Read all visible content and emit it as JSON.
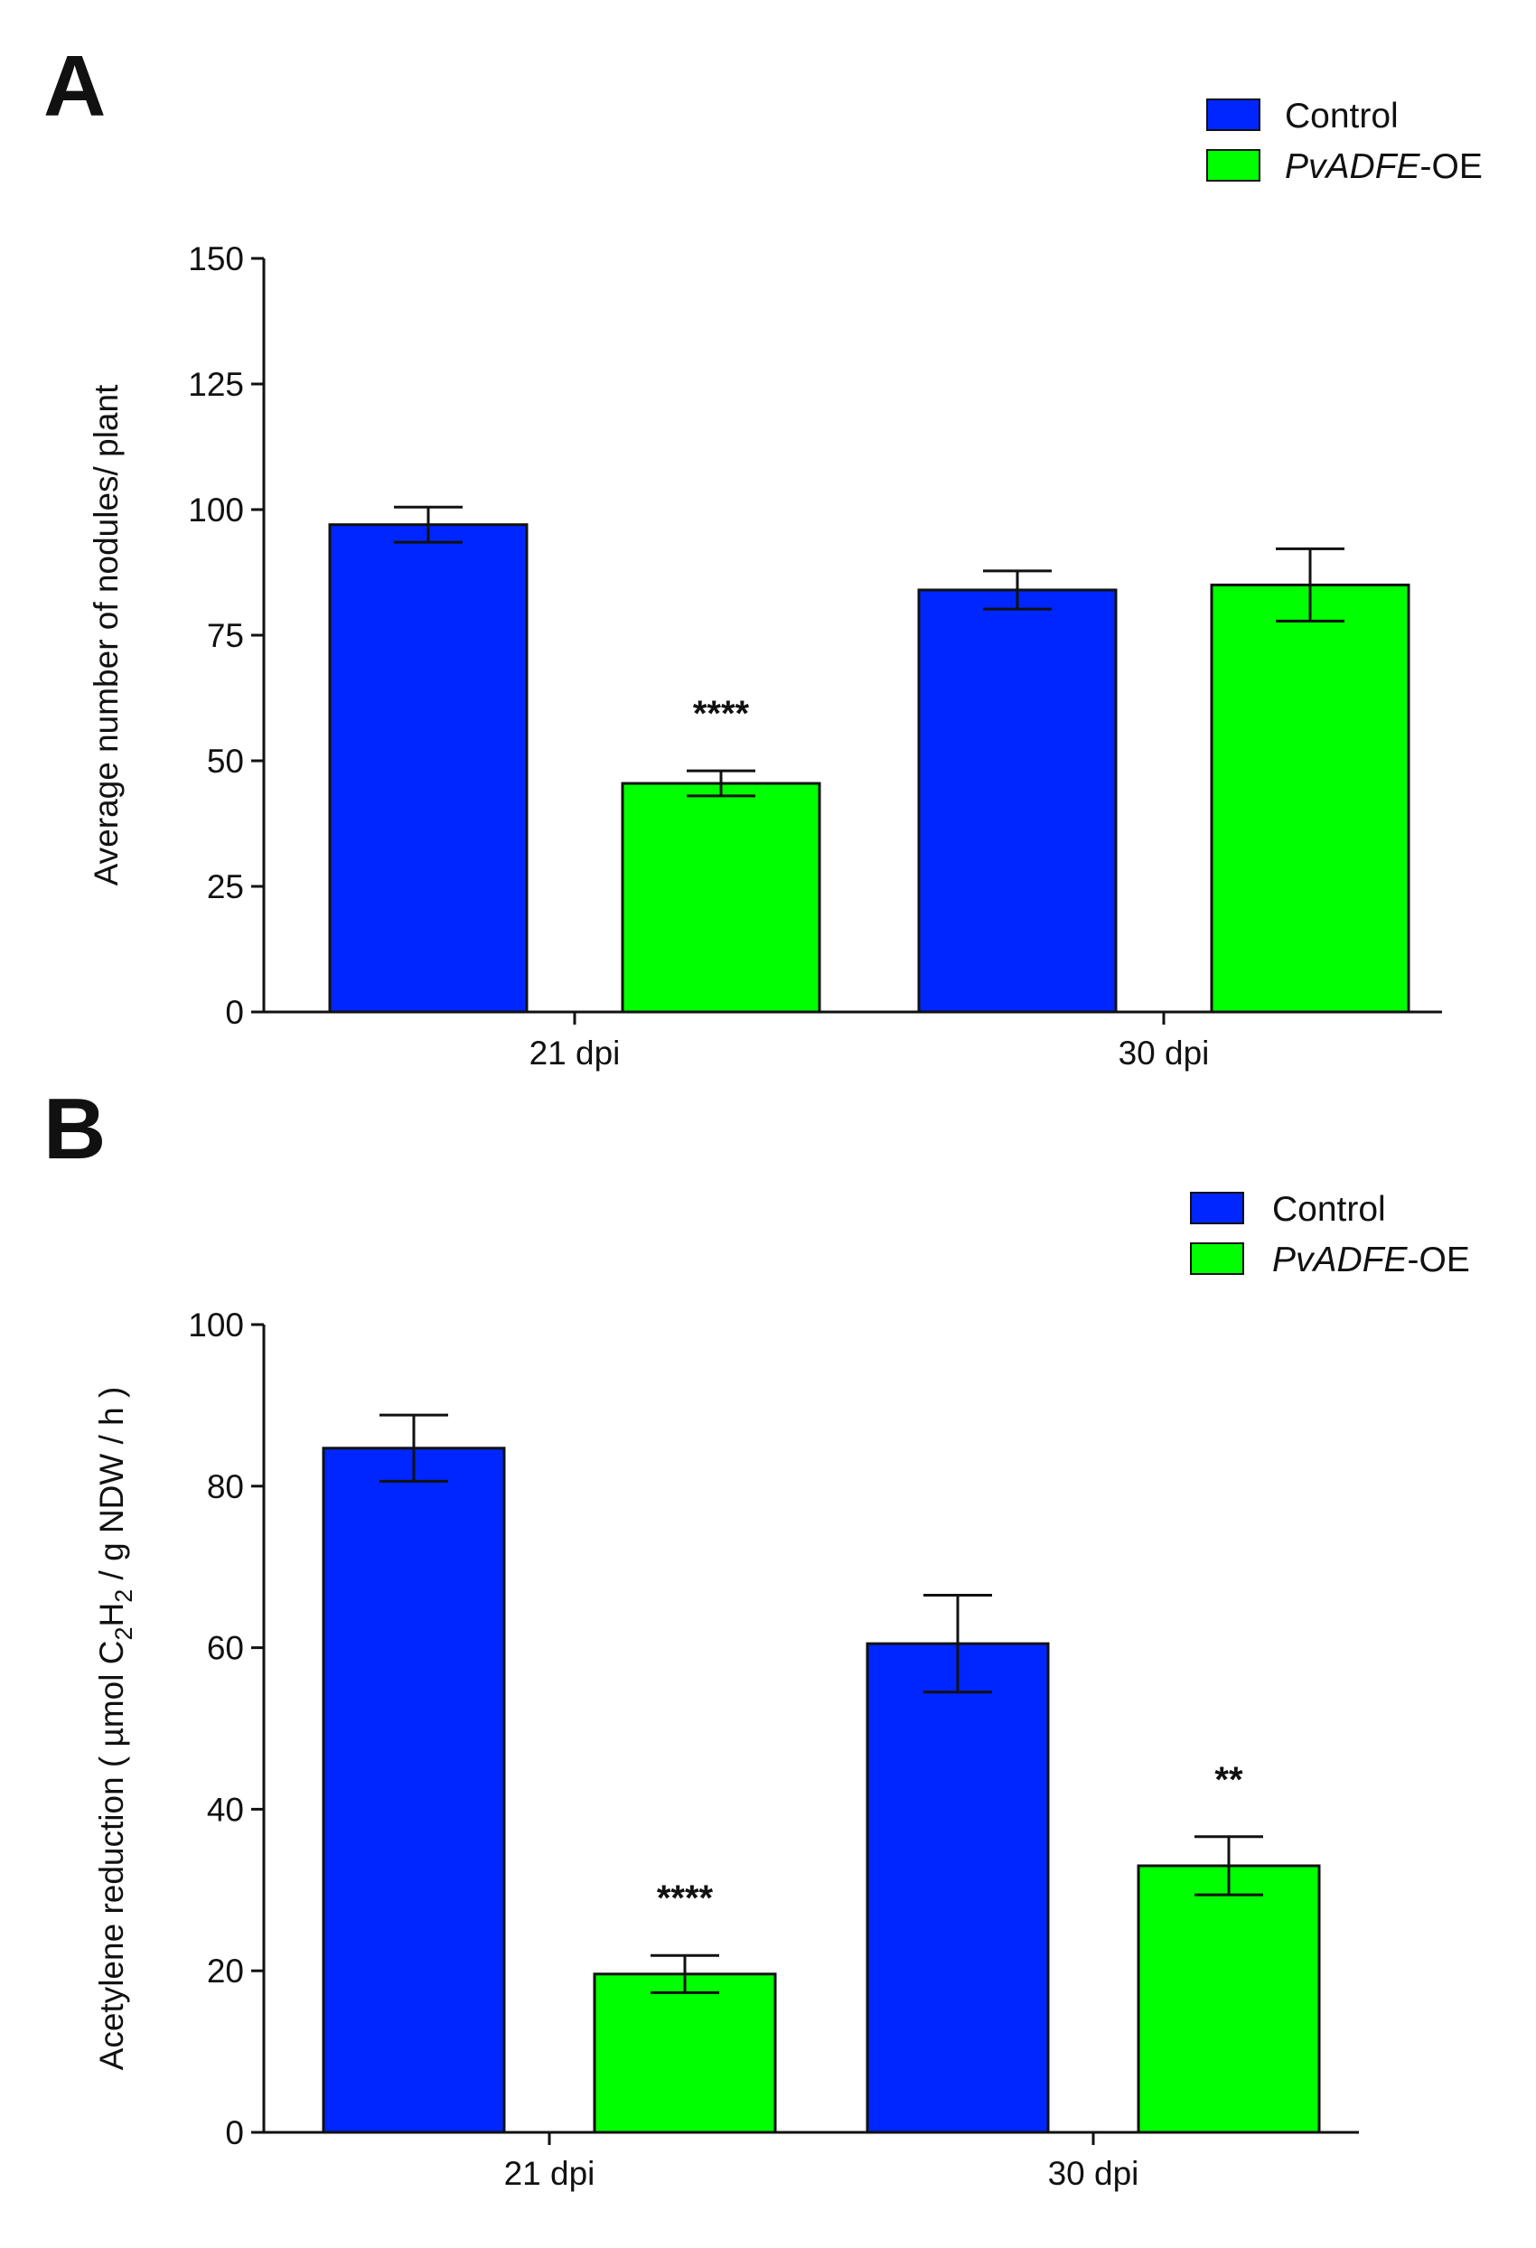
{
  "chart_data": [
    {
      "type": "bar",
      "panel": "A",
      "categories": [
        "21 dpi",
        "30 dpi"
      ],
      "series": [
        {
          "name": "Control",
          "color": "#0026ff",
          "values": [
            97,
            84
          ],
          "errors": [
            3.5,
            3.8
          ]
        },
        {
          "name": "PvADFE-OE",
          "color": "#00ff00",
          "values": [
            45.5,
            85
          ],
          "errors": [
            2.5,
            7.2
          ]
        }
      ],
      "legend": [
        {
          "italic": "",
          "text": "Control"
        },
        {
          "italic": "PvADFE",
          "text": "-OE"
        }
      ],
      "significance": [
        {
          "category": 0,
          "series": 1,
          "label": "****"
        }
      ],
      "ylabel": "Average number of nodules/ plant",
      "ylim": [
        0,
        150
      ],
      "yticks": [
        0,
        25,
        50,
        75,
        100,
        125,
        150
      ],
      "legend_position": "top-right"
    },
    {
      "type": "bar",
      "panel": "B",
      "categories": [
        "21 dpi",
        "30 dpi"
      ],
      "series": [
        {
          "name": "Control",
          "color": "#0026ff",
          "values": [
            84.7,
            60.5
          ],
          "errors": [
            4.1,
            6
          ]
        },
        {
          "name": "PvADFE-OE",
          "color": "#00ff00",
          "values": [
            19.6,
            33
          ],
          "errors": [
            2.3,
            3.6
          ]
        }
      ],
      "legend": [
        {
          "italic": "",
          "text": "Control"
        },
        {
          "italic": "PvADFE",
          "text": "-OE"
        }
      ],
      "significance": [
        {
          "category": 0,
          "series": 1,
          "label": "****"
        },
        {
          "category": 1,
          "series": 1,
          "label": "**"
        }
      ],
      "ylabel": {
        "prefix": "Acetylene reduction ( µmol C",
        "sub1": "2",
        "mid": "H",
        "sub2": "2",
        "suffix": " / g NDW / h )"
      },
      "ylim": [
        0,
        100
      ],
      "yticks": [
        0,
        20,
        40,
        60,
        80,
        100
      ],
      "legend_position": "top-right"
    }
  ]
}
